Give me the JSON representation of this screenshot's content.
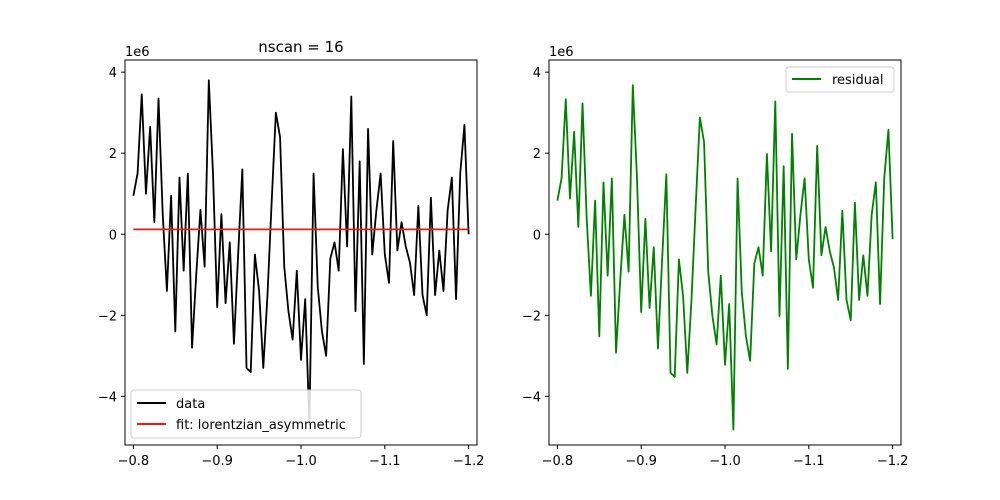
{
  "chart_data": [
    {
      "type": "line",
      "title": "nscan = 16",
      "xlabel": "",
      "ylabel": "",
      "y_multiplier_label": "1e6",
      "xlim": [
        -0.79,
        -1.21
      ],
      "ylim": [
        -5.2,
        4.3
      ],
      "x_ticks": [
        -0.8,
        -0.9,
        -1.0,
        -1.1,
        -1.2
      ],
      "x_tick_labels": [
        "−0.8",
        "−0.9",
        "−1.0",
        "−1.1",
        "−1.2"
      ],
      "y_ticks": [
        -4,
        -2,
        0,
        2,
        4
      ],
      "y_tick_labels": [
        "−4",
        "−2",
        "0",
        "2",
        "4"
      ],
      "legend_position": "lower-left",
      "series": [
        {
          "name": "data",
          "color": "#000000",
          "x": [
            -0.8,
            -0.805,
            -0.81,
            -0.815,
            -0.82,
            -0.825,
            -0.83,
            -0.835,
            -0.84,
            -0.845,
            -0.85,
            -0.855,
            -0.86,
            -0.865,
            -0.87,
            -0.875,
            -0.88,
            -0.885,
            -0.89,
            -0.895,
            -0.9,
            -0.905,
            -0.91,
            -0.915,
            -0.92,
            -0.925,
            -0.93,
            -0.935,
            -0.94,
            -0.945,
            -0.95,
            -0.955,
            -0.96,
            -0.965,
            -0.97,
            -0.975,
            -0.98,
            -0.985,
            -0.99,
            -0.995,
            -1.0,
            -1.005,
            -1.01,
            -1.015,
            -1.02,
            -1.025,
            -1.03,
            -1.035,
            -1.04,
            -1.045,
            -1.05,
            -1.055,
            -1.06,
            -1.065,
            -1.07,
            -1.075,
            -1.08,
            -1.085,
            -1.09,
            -1.095,
            -1.1,
            -1.105,
            -1.11,
            -1.115,
            -1.12,
            -1.125,
            -1.13,
            -1.135,
            -1.14,
            -1.145,
            -1.15,
            -1.155,
            -1.16,
            -1.165,
            -1.17,
            -1.175,
            -1.18,
            -1.185,
            -1.19,
            -1.195,
            -1.2
          ],
          "values": [
            0.95,
            1.5,
            3.45,
            1.0,
            2.65,
            0.3,
            3.35,
            0.5,
            -1.4,
            0.95,
            -2.4,
            1.4,
            -0.9,
            1.5,
            -2.8,
            -1.0,
            0.6,
            -0.8,
            3.8,
            1.5,
            -1.8,
            0.5,
            -1.7,
            -0.2,
            -2.7,
            -0.5,
            1.6,
            -3.3,
            -3.4,
            -0.5,
            -1.4,
            -3.3,
            -1.5,
            0.8,
            3.0,
            2.4,
            -0.8,
            -1.9,
            -2.6,
            -0.9,
            -3.1,
            -1.6,
            -4.7,
            1.5,
            -1.3,
            -2.4,
            -3.0,
            -0.6,
            -0.2,
            -0.9,
            2.1,
            -0.3,
            3.4,
            -1.9,
            1.8,
            -3.2,
            2.6,
            -0.5,
            0.6,
            1.5,
            -0.5,
            -1.2,
            2.3,
            -0.4,
            0.3,
            -0.3,
            -0.7,
            -1.5,
            0.7,
            -1.5,
            -2.0,
            0.9,
            -1.5,
            -0.4,
            -1.4,
            0.6,
            1.4,
            -1.6,
            1.5,
            2.7,
            0.0
          ]
        },
        {
          "name": "fit: lorentzian_asymmetric",
          "color": "#e41a1c",
          "x": [
            -0.8,
            -1.2
          ],
          "values": [
            0.12,
            0.12
          ]
        }
      ]
    },
    {
      "type": "line",
      "title": "",
      "xlabel": "",
      "ylabel": "",
      "y_multiplier_label": "1e6",
      "xlim": [
        -0.79,
        -1.21
      ],
      "ylim": [
        -5.2,
        4.3
      ],
      "x_ticks": [
        -0.8,
        -0.9,
        -1.0,
        -1.1,
        -1.2
      ],
      "x_tick_labels": [
        "−0.8",
        "−0.9",
        "−1.0",
        "−1.1",
        "−1.2"
      ],
      "y_ticks": [
        -4,
        -2,
        0,
        2,
        4
      ],
      "y_tick_labels": [
        "−4",
        "−2",
        "0",
        "2",
        "4"
      ],
      "legend_position": "top-right",
      "series": [
        {
          "name": "residual",
          "color": "#008000",
          "x": [
            -0.8,
            -0.805,
            -0.81,
            -0.815,
            -0.82,
            -0.825,
            -0.83,
            -0.835,
            -0.84,
            -0.845,
            -0.85,
            -0.855,
            -0.86,
            -0.865,
            -0.87,
            -0.875,
            -0.88,
            -0.885,
            -0.89,
            -0.895,
            -0.9,
            -0.905,
            -0.91,
            -0.915,
            -0.92,
            -0.925,
            -0.93,
            -0.935,
            -0.94,
            -0.945,
            -0.95,
            -0.955,
            -0.96,
            -0.965,
            -0.97,
            -0.975,
            -0.98,
            -0.985,
            -0.99,
            -0.995,
            -1.0,
            -1.005,
            -1.01,
            -1.015,
            -1.02,
            -1.025,
            -1.03,
            -1.035,
            -1.04,
            -1.045,
            -1.05,
            -1.055,
            -1.06,
            -1.065,
            -1.07,
            -1.075,
            -1.08,
            -1.085,
            -1.09,
            -1.095,
            -1.1,
            -1.105,
            -1.11,
            -1.115,
            -1.12,
            -1.125,
            -1.13,
            -1.135,
            -1.14,
            -1.145,
            -1.15,
            -1.155,
            -1.16,
            -1.165,
            -1.17,
            -1.175,
            -1.18,
            -1.185,
            -1.19,
            -1.195,
            -1.2
          ],
          "values": [
            0.83,
            1.38,
            3.33,
            0.88,
            2.53,
            0.18,
            3.23,
            0.38,
            -1.52,
            0.83,
            -2.52,
            1.28,
            -1.02,
            1.38,
            -2.92,
            -1.12,
            0.48,
            -0.92,
            3.68,
            1.38,
            -1.92,
            0.38,
            -1.82,
            -0.32,
            -2.82,
            -0.62,
            1.48,
            -3.42,
            -3.52,
            -0.62,
            -1.52,
            -3.42,
            -1.62,
            0.68,
            2.88,
            2.28,
            -0.92,
            -2.02,
            -2.72,
            -1.02,
            -3.22,
            -1.72,
            -4.82,
            1.38,
            -1.42,
            -2.52,
            -3.12,
            -0.72,
            -0.32,
            -1.02,
            1.98,
            -0.42,
            3.28,
            -2.02,
            1.68,
            -3.32,
            2.48,
            -0.62,
            0.48,
            1.38,
            -0.62,
            -1.32,
            2.18,
            -0.52,
            0.18,
            -0.42,
            -0.82,
            -1.62,
            0.58,
            -1.62,
            -2.12,
            0.78,
            -1.62,
            -0.52,
            -1.52,
            0.48,
            1.28,
            -1.72,
            1.38,
            2.58,
            -0.12
          ]
        }
      ]
    }
  ]
}
